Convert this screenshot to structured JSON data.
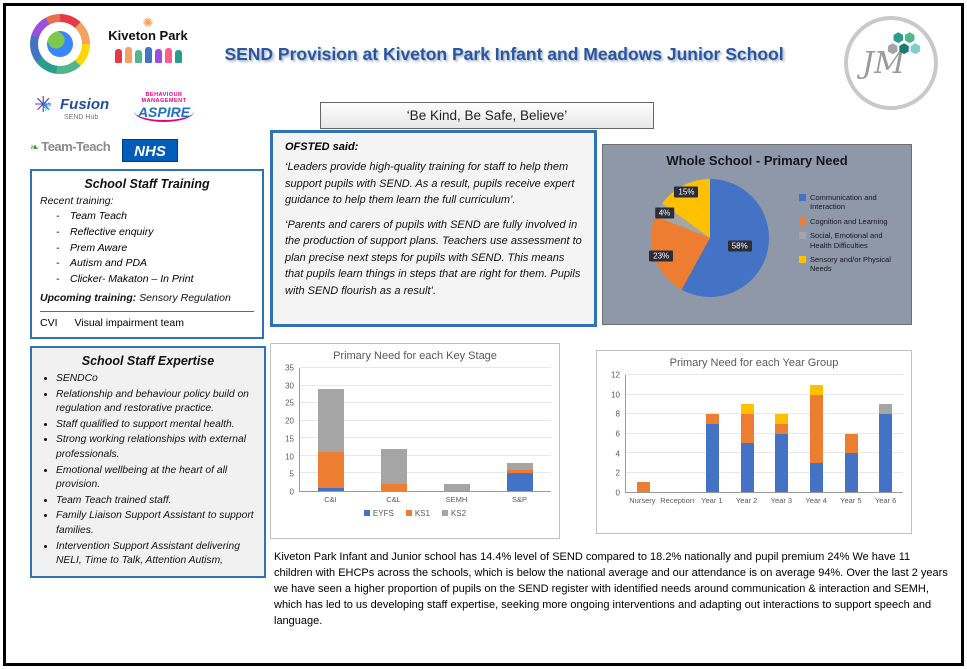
{
  "header": {
    "title": "SEND Provision at Kiveton Park Infant and Meadows Junior School",
    "motto": "‘Be Kind, Be Safe, Believe’"
  },
  "logos": {
    "kiveton_park": "Kiveton Park",
    "fusion_name": "Fusion",
    "fusion_sub": "SEND Hub",
    "aspire_top": "BEHAVIOUR MANAGEMENT",
    "aspire_name": "ASPIRE",
    "team_teach": "Team-Teach",
    "nhs": "NHS",
    "jm_initials": "JM",
    "icons": [
      "starburst-icon",
      "hexagon-cluster-icon",
      "globe-icon",
      "family-figures-icon",
      "sun-icon",
      "leaf-icon"
    ]
  },
  "training": {
    "title": "School Staff Training",
    "recent_label": "Recent training:",
    "items": [
      "Team Teach",
      "Reflective enquiry",
      "Prem Aware",
      "Autism and PDA",
      "Clicker- Makaton – In Print"
    ],
    "upcoming_label": "Upcoming training:",
    "upcoming_value": "Sensory Regulation",
    "footer_label": "CVI",
    "footer_value": "Visual impairment team"
  },
  "expertise": {
    "title": "School Staff Expertise",
    "items": [
      "SENDCo",
      "Relationship and behaviour policy build on regulation and restorative practice.",
      "Staff qualified to support mental health.",
      "Strong working relationships with external professionals.",
      "Emotional wellbeing at the heart of all provision.",
      "Team Teach trained staff.",
      "Family Liaison Support Assistant to support families.",
      "Intervention Support Assistant delivering NELI, Time to Talk, Attention Autism,"
    ]
  },
  "ofsted": {
    "title": "OFSTED said:",
    "p1": "‘Leaders provide high-quality training for staff to help them support pupils with SEND. As a result, pupils receive expert guidance to help them learn the full curriculum’.",
    "p2": "‘Parents and carers of pupils with SEND are fully involved in the production of support plans. Teachers use assessment to plan precise next steps for pupils with SEND. This means that pupils learn things in steps that are right for them. Pupils with SEND flourish as a result’."
  },
  "summary": "Kiveton Park Infant and Junior school has 14.4% level of SEND compared to 18.2% nationally and pupil premium 24% We have 11 children with EHCPs across the schools, which is below the national average and our attendance is on average 94%. Over the last 2 years we have seen a higher proportion of pupils on the SEND register with identified needs around communication & interaction and SEMH, which has led to us developing staff expertise, seeking more ongoing interventions and adapting out interactions to support speech and language.",
  "colors": {
    "accent_blue_border": "#2E74B5",
    "title_blue": "#2B579A",
    "nhs_blue": "#005EB8",
    "series_blue": "#4472C4",
    "series_orange": "#ED7D31",
    "series_gray": "#A5A5A5",
    "series_yellow": "#FFC000",
    "pie_panel_bg": "#8E98A8"
  },
  "chart_data": [
    {
      "type": "pie",
      "title": "Whole School - Primary Need",
      "labels": [
        "Communication and Interaction",
        "Cognition and Learning",
        "Social, Emotional and Health Difficulties",
        "Sensory and/or Physical Needs"
      ],
      "values": [
        58,
        23,
        4,
        15
      ],
      "unit": "%",
      "colors": [
        "#4472C4",
        "#ED7D31",
        "#A5A5A5",
        "#FFC000"
      ],
      "legend_position": "right"
    },
    {
      "type": "bar",
      "stacked": true,
      "title": "Primary Need for each Key Stage",
      "categories": [
        "C&I",
        "C&L",
        "SEMH",
        "S&P"
      ],
      "series": [
        {
          "name": "EYFS",
          "color": "#4472C4",
          "values": [
            1,
            0,
            0,
            5
          ]
        },
        {
          "name": "KS1",
          "color": "#ED7D31",
          "values": [
            10,
            2,
            0,
            1
          ]
        },
        {
          "name": "KS2",
          "color": "#A5A5A5",
          "values": [
            18,
            10,
            2,
            2
          ]
        }
      ],
      "ylim": [
        0,
        35
      ],
      "ytick": 5,
      "legend": true,
      "grid": true
    },
    {
      "type": "bar",
      "stacked": true,
      "title": "Primary Need for each Year Group",
      "categories": [
        "Nursery",
        "Reception",
        "Year 1",
        "Year 2",
        "Year 3",
        "Year 4",
        "Year 5",
        "Year 6"
      ],
      "series": [
        {
          "name": "C&I",
          "color": "#4472C4",
          "values": [
            0,
            0,
            7,
            5,
            6,
            3,
            4,
            8
          ]
        },
        {
          "name": "C&L",
          "color": "#ED7D31",
          "values": [
            1,
            0,
            1,
            3,
            1,
            7,
            2,
            0
          ]
        },
        {
          "name": "SEMH",
          "color": "#A5A5A5",
          "values": [
            0,
            0,
            0,
            0,
            0,
            0,
            0,
            1
          ]
        },
        {
          "name": "S&P",
          "color": "#FFC000",
          "values": [
            0,
            0,
            0,
            1,
            1,
            1,
            0,
            0
          ]
        }
      ],
      "ylim": [
        0,
        12
      ],
      "ytick": 2,
      "legend": false,
      "grid": true
    }
  ]
}
